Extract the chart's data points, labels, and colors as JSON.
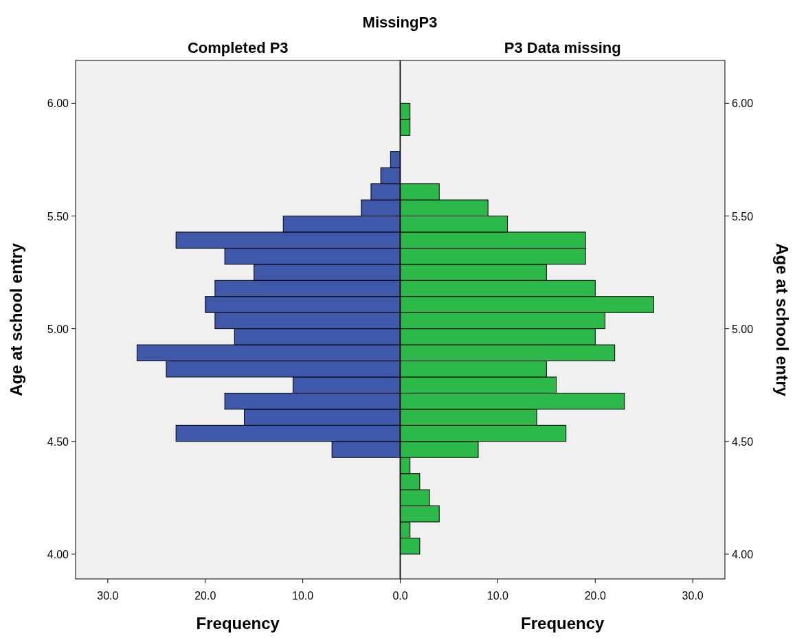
{
  "chart_data": [
    {
      "type": "histogram",
      "orientation": "horizontal",
      "title": "MissingP3",
      "subtitle": "Completed P3",
      "xlabel": "Frequency",
      "ylabel": "Age at school entry",
      "color": "#3f58aa",
      "grid": false,
      "bins": [
        4.0,
        4.0714,
        4.1429,
        4.2143,
        4.2857,
        4.3571,
        4.4286,
        4.5,
        4.5714,
        4.6429,
        4.7143,
        4.7857,
        4.8571,
        4.9286,
        5.0,
        5.0714,
        5.1429,
        5.2143,
        5.2857,
        5.3571,
        5.4286,
        5.5,
        5.5714,
        5.6429,
        5.7143,
        5.7857,
        5.8571,
        5.9286,
        6.0
      ],
      "values": [
        0,
        0,
        0,
        0,
        0,
        0,
        7,
        23,
        16,
        18,
        11,
        24,
        27,
        17,
        19,
        20,
        19,
        15,
        18,
        23,
        12,
        4,
        3,
        2,
        1,
        0,
        0,
        0
      ],
      "xlim": [
        33.3,
        0
      ],
      "xticks": [
        {
          "value": 30,
          "label": "30.0"
        },
        {
          "value": 20,
          "label": "20.0"
        },
        {
          "value": 10,
          "label": "10.0"
        },
        {
          "value": 0,
          "label": "0.0"
        }
      ],
      "ylim": [
        3.89,
        6.19
      ],
      "yticks": [
        {
          "value": 4,
          "label": "4.00"
        },
        {
          "value": 4.5,
          "label": "4.50"
        },
        {
          "value": 5,
          "label": "5.00"
        },
        {
          "value": 5.5,
          "label": "5.50"
        },
        {
          "value": 6,
          "label": "6.00"
        }
      ]
    },
    {
      "type": "histogram",
      "orientation": "horizontal",
      "subtitle": "P3 Data missing",
      "xlabel": "Frequency",
      "ylabel": "Age at school entry",
      "color": "#2db84a",
      "grid": false,
      "bins": [
        4.0,
        4.0714,
        4.1429,
        4.2143,
        4.2857,
        4.3571,
        4.4286,
        4.5,
        4.5714,
        4.6429,
        4.7143,
        4.7857,
        4.8571,
        4.9286,
        5.0,
        5.0714,
        5.1429,
        5.2143,
        5.2857,
        5.3571,
        5.4286,
        5.5,
        5.5714,
        5.6429,
        5.7143,
        5.7857,
        5.8571,
        5.9286,
        6.0
      ],
      "values": [
        2,
        1,
        4,
        3,
        2,
        1,
        8,
        17,
        14,
        23,
        16,
        15,
        22,
        20,
        21,
        26,
        20,
        15,
        19,
        19,
        11,
        9,
        4,
        0,
        0,
        0,
        1,
        1
      ],
      "xlim": [
        0,
        33.3
      ],
      "xticks": [
        {
          "value": 0,
          "label": null
        },
        {
          "value": 10,
          "label": "10.0"
        },
        {
          "value": 20,
          "label": "20.0"
        },
        {
          "value": 30,
          "label": "30.0"
        }
      ],
      "ylim": [
        3.89,
        6.19
      ],
      "yticks": [
        {
          "value": 4,
          "label": "4.00"
        },
        {
          "value": 4.5,
          "label": "4.50"
        },
        {
          "value": 5,
          "label": "5.00"
        },
        {
          "value": 5.5,
          "label": "5.50"
        },
        {
          "value": 6,
          "label": "6.00"
        }
      ]
    }
  ]
}
